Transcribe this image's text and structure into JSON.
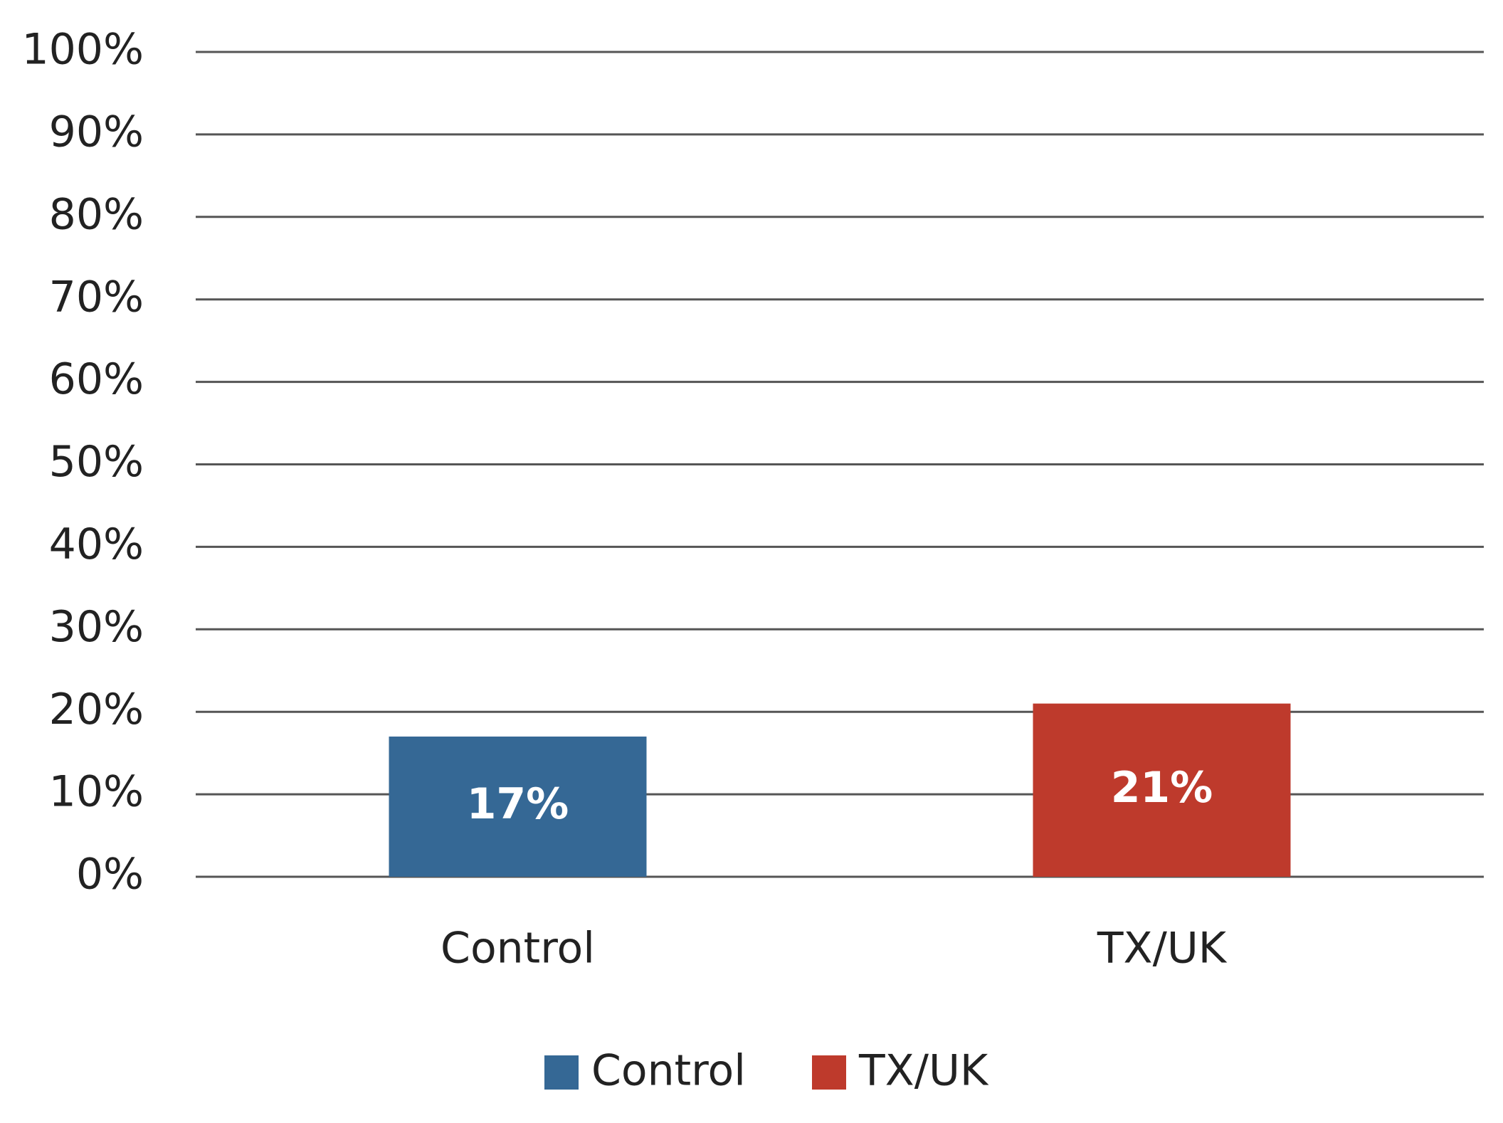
{
  "chart_data": {
    "type": "bar",
    "categories": [
      "Control",
      "TX/UK"
    ],
    "values": [
      17,
      21
    ],
    "value_labels": [
      "17%",
      "21%"
    ],
    "colors": [
      "#356895",
      "#be3a2c"
    ],
    "ylim": [
      0,
      100
    ],
    "yticks": [
      {
        "value": 0,
        "label": "0%"
      },
      {
        "value": 10,
        "label": "10%"
      },
      {
        "value": 20,
        "label": "20%"
      },
      {
        "value": 30,
        "label": "30%"
      },
      {
        "value": 40,
        "label": "40%"
      },
      {
        "value": 50,
        "label": "50%"
      },
      {
        "value": 60,
        "label": "60%"
      },
      {
        "value": 70,
        "label": "70%"
      },
      {
        "value": 80,
        "label": "80%"
      },
      {
        "value": 90,
        "label": "90%"
      },
      {
        "value": 100,
        "label": "100%"
      }
    ],
    "grid": true,
    "legend": "bottom"
  }
}
